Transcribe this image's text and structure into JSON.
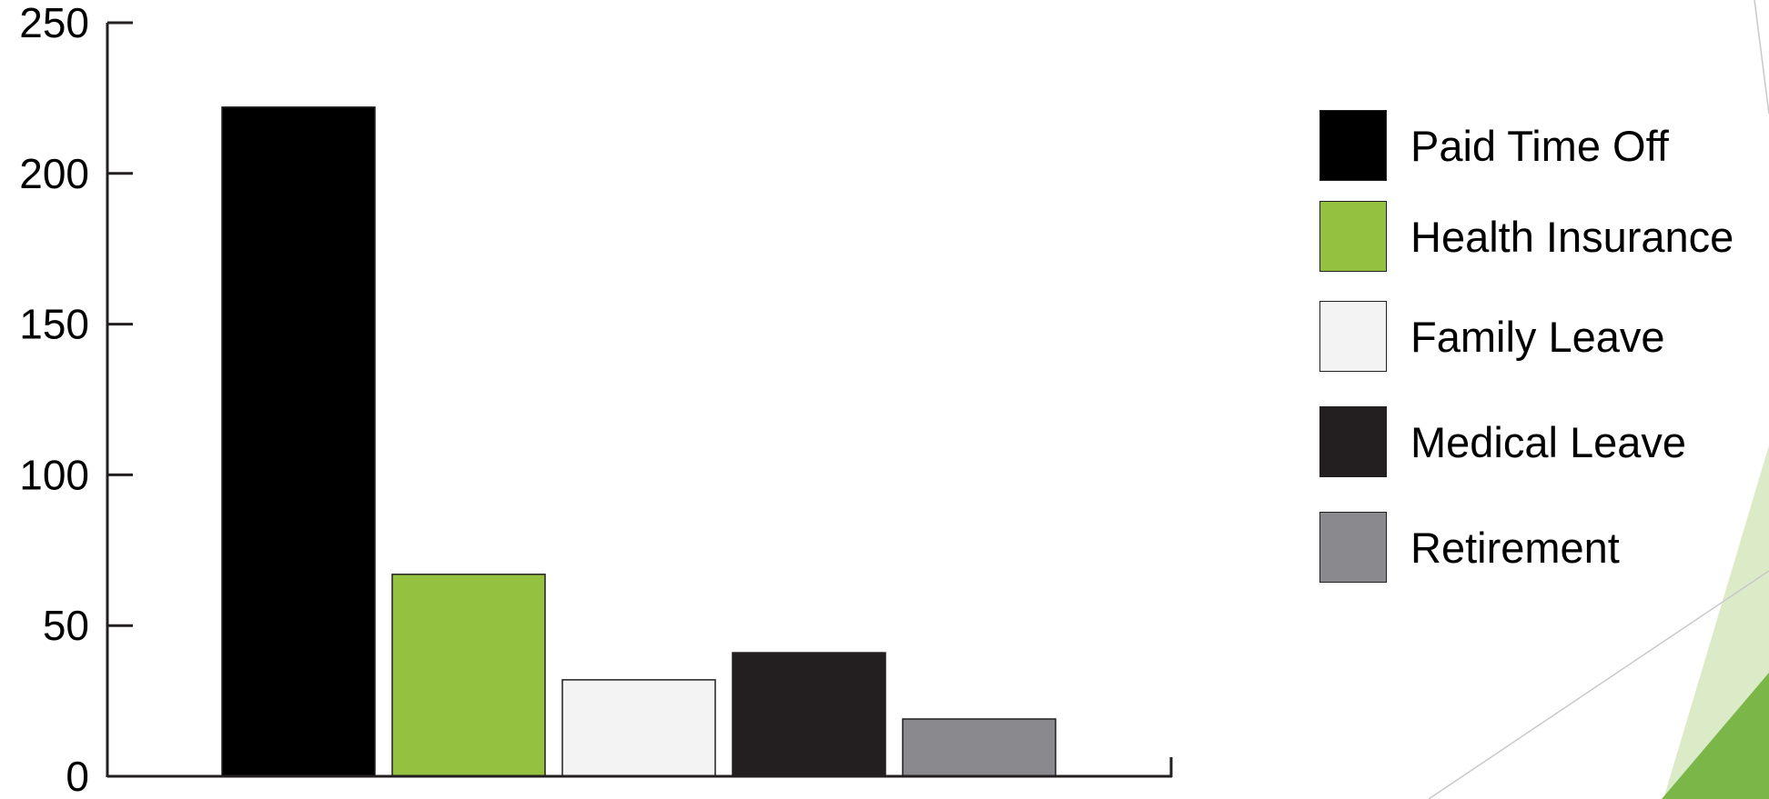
{
  "chart_data": {
    "type": "bar",
    "title": "",
    "xlabel": "",
    "ylabel": "",
    "ylim": [
      0,
      250
    ],
    "yticks": [
      0,
      50,
      100,
      150,
      200,
      250
    ],
    "ytick_labels": [
      "0",
      "50",
      "100",
      "150",
      "200",
      "250"
    ],
    "grid": false,
    "legend_position": "right",
    "categories": [
      "Paid Time Off",
      "Health Insurance",
      "Family Leave",
      "Medical Leave",
      "Retirement"
    ],
    "values": [
      222,
      67,
      32,
      41,
      19
    ],
    "colors": [
      "#000000",
      "#94c13f",
      "#f3f3f4",
      "#231f20",
      "#8a898e"
    ],
    "legend": [
      {
        "label": "Paid Time Off",
        "color": "#000000"
      },
      {
        "label": "Health Insurance",
        "color": "#94c13f"
      },
      {
        "label": "Family Leave",
        "color": "#f3f3f4"
      },
      {
        "label": "Medical Leave",
        "color": "#231f20"
      },
      {
        "label": "Retirement",
        "color": "#8a898e"
      }
    ]
  }
}
